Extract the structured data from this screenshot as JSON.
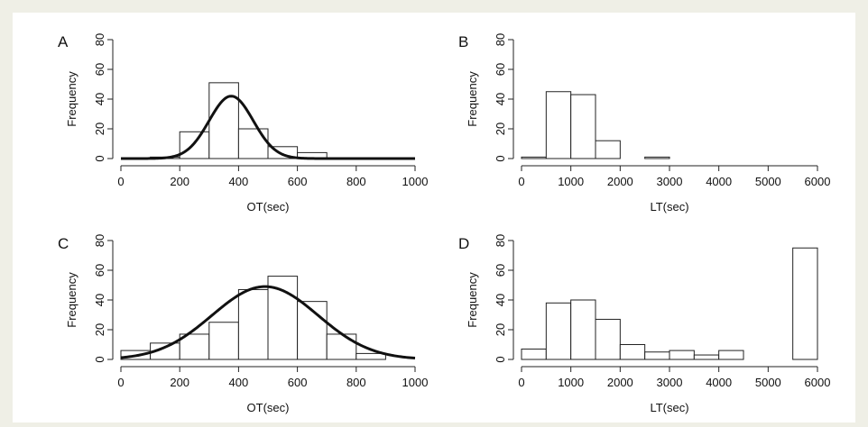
{
  "chart_data": [
    {
      "type": "bar",
      "panel_label": "A",
      "xlabel": "OT(sec)",
      "ylabel": "Frequency",
      "xlim": [
        0,
        1000
      ],
      "ylim": [
        0,
        80
      ],
      "xticks": [
        0,
        200,
        400,
        600,
        800,
        1000
      ],
      "yticks": [
        0,
        20,
        40,
        60,
        80
      ],
      "bin_edges": [
        0,
        100,
        200,
        300,
        400,
        500,
        600,
        700,
        800,
        900,
        1000
      ],
      "values": [
        0,
        1,
        18,
        51,
        20,
        8,
        4,
        0,
        0,
        0
      ],
      "curve": {
        "type": "normal-fit",
        "mean": 375,
        "peak": 42,
        "sd": 75
      },
      "grid": false
    },
    {
      "type": "bar",
      "panel_label": "B",
      "xlabel": "LT(sec)",
      "ylabel": "Frequency",
      "xlim": [
        0,
        6000
      ],
      "ylim": [
        0,
        80
      ],
      "xticks": [
        0,
        1000,
        2000,
        3000,
        4000,
        5000,
        6000
      ],
      "yticks": [
        0,
        20,
        40,
        60,
        80
      ],
      "bin_edges": [
        0,
        500,
        1000,
        1500,
        2000,
        2500,
        3000
      ],
      "values": [
        1,
        45,
        43,
        12,
        0,
        1
      ],
      "grid": false
    },
    {
      "type": "bar",
      "panel_label": "C",
      "xlabel": "OT(sec)",
      "ylabel": "Frequency",
      "xlim": [
        0,
        1000
      ],
      "ylim": [
        0,
        80
      ],
      "xticks": [
        0,
        200,
        400,
        600,
        800,
        1000
      ],
      "yticks": [
        0,
        20,
        40,
        60,
        80
      ],
      "bin_edges": [
        0,
        100,
        200,
        300,
        400,
        500,
        600,
        700,
        800,
        900,
        1000
      ],
      "values": [
        6,
        11,
        17,
        25,
        47,
        56,
        39,
        17,
        4,
        0
      ],
      "curve": {
        "type": "normal-fit",
        "mean": 490,
        "peak": 49,
        "sd": 180
      },
      "grid": false
    },
    {
      "type": "bar",
      "panel_label": "D",
      "xlabel": "LT(sec)",
      "ylabel": "Frequency",
      "xlim": [
        0,
        6000
      ],
      "ylim": [
        0,
        80
      ],
      "xticks": [
        0,
        1000,
        2000,
        3000,
        4000,
        5000,
        6000
      ],
      "yticks": [
        0,
        20,
        40,
        60,
        80
      ],
      "bin_edges": [
        0,
        500,
        1000,
        1500,
        2000,
        2500,
        3000,
        3500,
        4000,
        4500,
        5000,
        5500,
        6000
      ],
      "values": [
        7,
        38,
        40,
        27,
        10,
        5,
        6,
        3,
        6,
        0,
        0,
        75
      ],
      "grid": false
    }
  ]
}
